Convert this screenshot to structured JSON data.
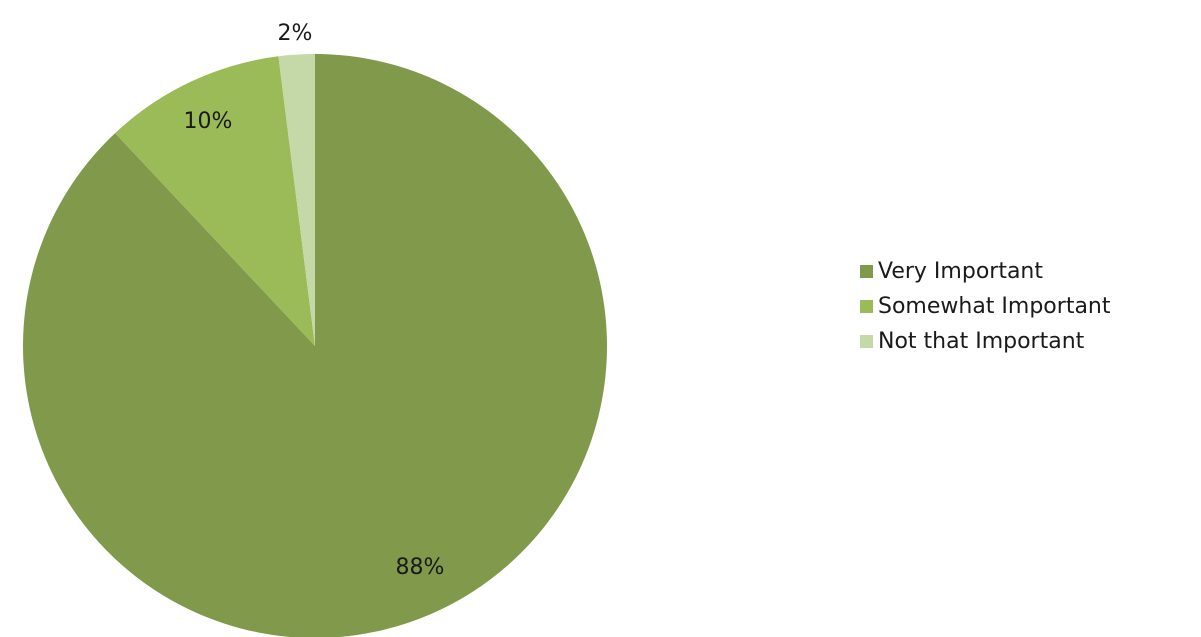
{
  "chart_data": {
    "type": "pie",
    "title": "",
    "series": [
      {
        "values": [
          88,
          10,
          2
        ]
      }
    ],
    "categories": [
      "Very Important",
      "Somewhat Important",
      "Not that Important"
    ],
    "data_labels": [
      "88%",
      "10%",
      "2%"
    ],
    "colors": [
      "#80994a",
      "#9bbb59",
      "#c5d9a8"
    ],
    "start_angle_deg": 0,
    "direction": "clockwise",
    "legend_position": "right"
  }
}
